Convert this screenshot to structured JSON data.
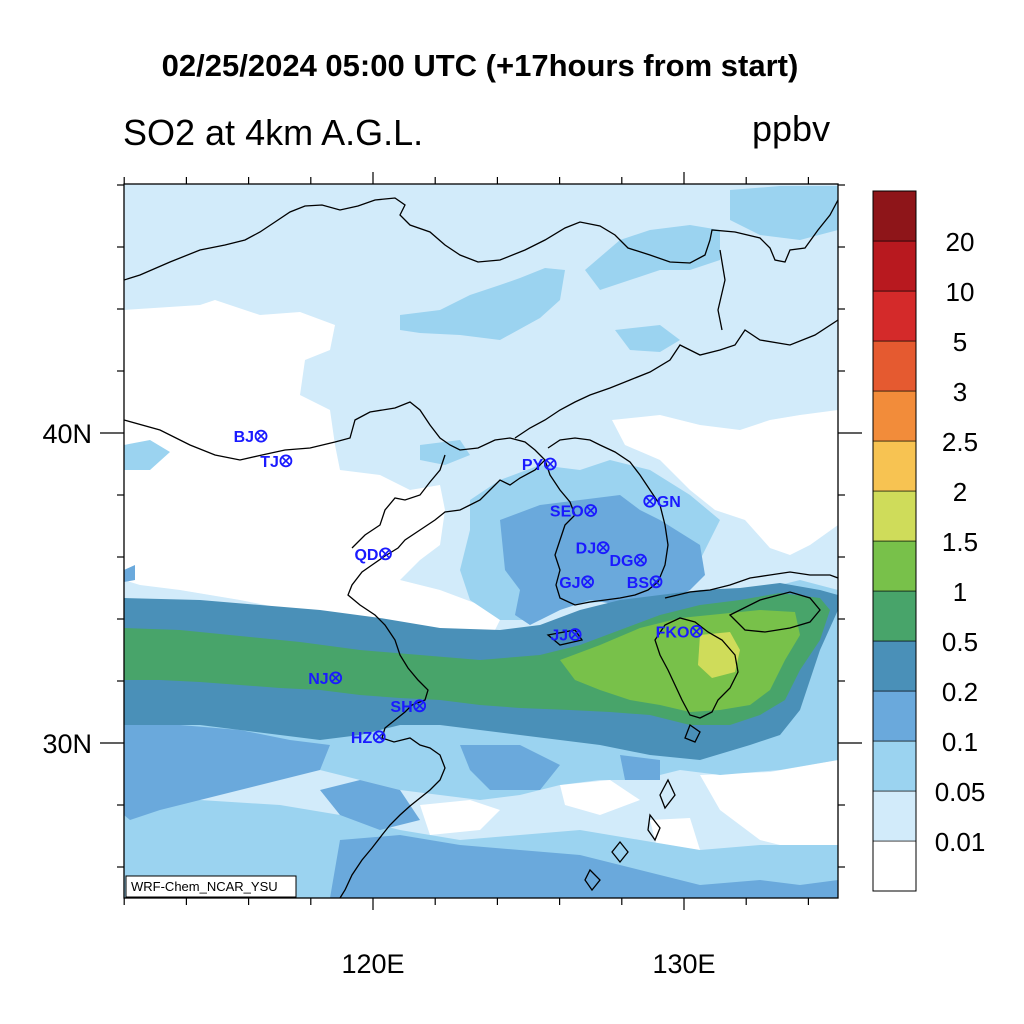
{
  "header": {
    "title": "02/25/2024 05:00 UTC (+17hours from start)",
    "subtitle_left": "SO2 at 4km A.G.L.",
    "units": "ppbv"
  },
  "axes": {
    "x_tick_labels": [
      {
        "label": "120E",
        "lon": 120
      },
      {
        "label": "130E",
        "lon": 130
      }
    ],
    "y_tick_labels": [
      {
        "label": "40N",
        "lat": 40
      },
      {
        "label": "30N",
        "lat": 30
      }
    ],
    "lon_range": [
      112,
      135
    ],
    "lat_range": [
      25,
      48
    ]
  },
  "cities": [
    {
      "code": "BJ",
      "lon": 116.4,
      "lat": 39.9,
      "label_side": "left"
    },
    {
      "code": "TJ",
      "lon": 117.2,
      "lat": 39.1,
      "label_side": "left"
    },
    {
      "code": "PY",
      "lon": 125.7,
      "lat": 39.0,
      "label_side": "left"
    },
    {
      "code": "SEO",
      "lon": 127.0,
      "lat": 37.5,
      "label_side": "left"
    },
    {
      "code": "GN",
      "lon": 128.9,
      "lat": 37.8,
      "label_side": "right"
    },
    {
      "code": "QD",
      "lon": 120.4,
      "lat": 36.1,
      "label_side": "left"
    },
    {
      "code": "DJ",
      "lon": 127.4,
      "lat": 36.3,
      "label_side": "left"
    },
    {
      "code": "DG",
      "lon": 128.6,
      "lat": 35.9,
      "label_side": "left"
    },
    {
      "code": "GJ",
      "lon": 126.9,
      "lat": 35.2,
      "label_side": "left"
    },
    {
      "code": "BS",
      "lon": 129.1,
      "lat": 35.2,
      "label_side": "left"
    },
    {
      "code": "JJ",
      "lon": 126.5,
      "lat": 33.5,
      "label_side": "left"
    },
    {
      "code": "FKO",
      "lon": 130.4,
      "lat": 33.6,
      "label_side": "left"
    },
    {
      "code": "NJ",
      "lon": 118.8,
      "lat": 32.1,
      "label_side": "left"
    },
    {
      "code": "SH",
      "lon": 121.5,
      "lat": 31.2,
      "label_side": "left"
    },
    {
      "code": "HZ",
      "lon": 120.2,
      "lat": 30.2,
      "label_side": "left"
    }
  ],
  "credit": "WRF-Chem_NCAR_YSU",
  "colorbar": {
    "levels": [
      "0.01",
      "0.05",
      "0.1",
      "0.2",
      "0.5",
      "1",
      "1.5",
      "2",
      "2.5",
      "3",
      "5",
      "10",
      "20"
    ],
    "colors": [
      "#ffffff",
      "#d2ebfa",
      "#9bd3f0",
      "#6aa9dc",
      "#4a90b8",
      "#48a46a",
      "#78c14a",
      "#cfdc5a",
      "#f7c352",
      "#f28c3a",
      "#e55a30",
      "#d42a2a",
      "#b8191f",
      "#8e1519"
    ]
  }
}
